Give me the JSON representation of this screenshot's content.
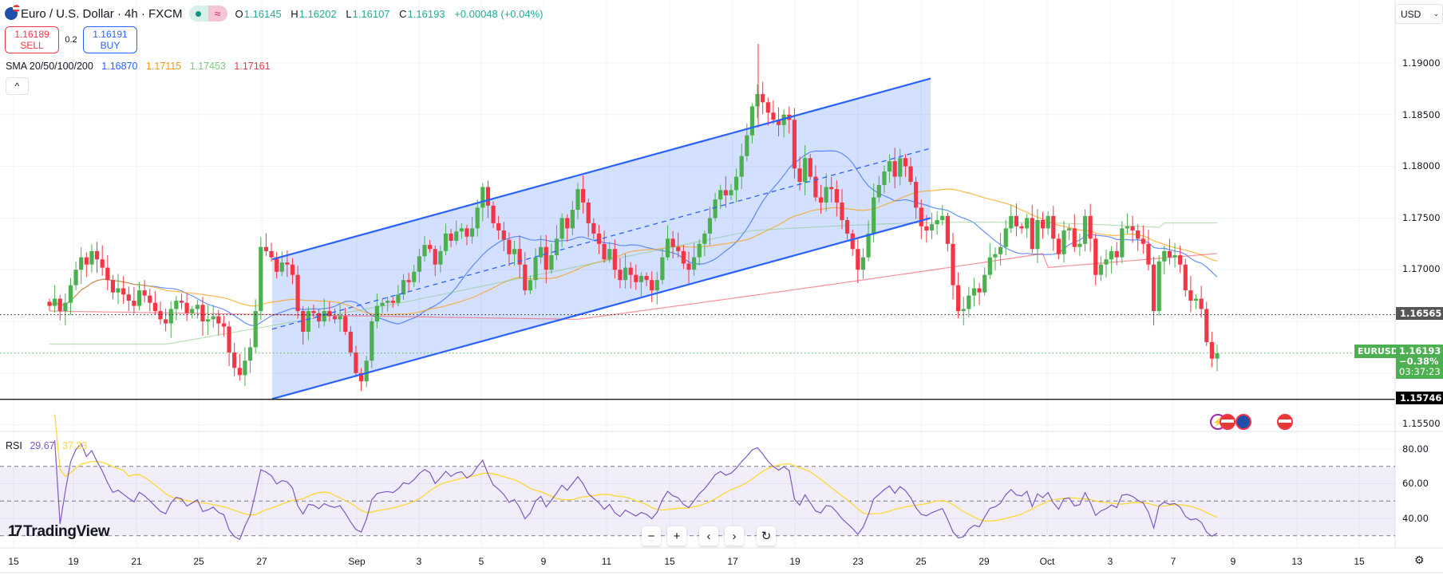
{
  "header": {
    "symbol_title": "Euro / U.S. Dollar · 4h · FXCM",
    "ohlc": {
      "o_label": "O",
      "o": "1.16145",
      "h_label": "H",
      "h": "1.16202",
      "l_label": "L",
      "l": "1.16107",
      "c_label": "C",
      "c": "1.16193",
      "change": "+0.00048 (+0.04%)"
    },
    "market_status_icon": "market-open-dot",
    "data_icon": "≈"
  },
  "trade": {
    "sell_price": "1.16189",
    "sell_label": "SELL",
    "spread": "0.2",
    "buy_price": "1.16191",
    "buy_label": "BUY"
  },
  "sma": {
    "label": "SMA 20/50/100/200",
    "values": [
      "1.16870",
      "1.17115",
      "1.17453",
      "1.17161"
    ],
    "colors": [
      "#2962ff",
      "#ff9800",
      "#81c784",
      "#f23645"
    ]
  },
  "collapse_icon": "^",
  "currency_select": "USD",
  "price_axis": {
    "ticks": [
      "1.19000",
      "1.18500",
      "1.18000",
      "1.17500",
      "1.17000",
      "1.15500"
    ],
    "tags": {
      "line_level": "1.16565",
      "current_price": "1.16193",
      "current_change": "−0.38%",
      "countdown": "03:37:23",
      "support_level": "1.15746",
      "symbol": "EURUSD"
    }
  },
  "rsi": {
    "label": "RSI",
    "value": "29.67",
    "ma_value": "37.33",
    "ticks": [
      "80.00",
      "60.00",
      "40.00"
    ]
  },
  "time_axis": [
    "15",
    "19",
    "21",
    "25",
    "27",
    "Sep",
    "3",
    "5",
    "9",
    "11",
    "15",
    "17",
    "19",
    "23",
    "25",
    "29",
    "Oct",
    "3",
    "7",
    "9",
    "13",
    "15"
  ],
  "logo": {
    "mark": "17",
    "text": "TradingView"
  },
  "controls": {
    "zoom_out": "−",
    "zoom_in": "+",
    "scroll_left": "‹",
    "scroll_right": "›",
    "reset": "↻"
  },
  "chart_data": {
    "type": "candlestick",
    "title": "Euro / U.S. Dollar · 4h · FXCM",
    "ylabel": "USD",
    "ylim": [
      1.153,
      1.195
    ],
    "x_ticks": [
      "15",
      "19",
      "21",
      "25",
      "27",
      "Sep",
      "3",
      "5",
      "9",
      "11",
      "15",
      "17",
      "19",
      "23",
      "25",
      "29",
      "Oct",
      "3",
      "7",
      "9",
      "13",
      "15"
    ],
    "closes": [
      1.1665,
      1.1672,
      1.166,
      1.1668,
      1.1685,
      1.17,
      1.1712,
      1.1705,
      1.1718,
      1.171,
      1.1702,
      1.169,
      1.1678,
      1.1682,
      1.1676,
      1.167,
      1.1665,
      1.168,
      1.1675,
      1.1668,
      1.166,
      1.1652,
      1.1648,
      1.1662,
      1.167,
      1.1668,
      1.1658,
      1.1662,
      1.1666,
      1.165,
      1.1652,
      1.1655,
      1.1648,
      1.1645,
      1.162,
      1.1605,
      1.1598,
      1.1612,
      1.1625,
      1.166,
      1.1722,
      1.1718,
      1.1712,
      1.1698,
      1.1707,
      1.1705,
      1.1695,
      1.166,
      1.164,
      1.166,
      1.1658,
      1.165,
      1.166,
      1.1655,
      1.1652,
      1.1655,
      1.164,
      1.162,
      1.16,
      1.1592,
      1.1612,
      1.165,
      1.1665,
      1.1668,
      1.167,
      1.1668,
      1.1676,
      1.169,
      1.1688,
      1.1698,
      1.1713,
      1.1724,
      1.172,
      1.1705,
      1.1718,
      1.1735,
      1.1728,
      1.1737,
      1.174,
      1.1732,
      1.174,
      1.176,
      1.178,
      1.1762,
      1.1745,
      1.1738,
      1.1729,
      1.1715,
      1.172,
      1.1705,
      1.168,
      1.169,
      1.1712,
      1.1722,
      1.17,
      1.1714,
      1.173,
      1.175,
      1.174,
      1.1758,
      1.1778,
      1.1765,
      1.1745,
      1.1735,
      1.1725,
      1.171,
      1.172,
      1.17,
      1.169,
      1.1702,
      1.1695,
      1.1688,
      1.1694,
      1.169,
      1.168,
      1.169,
      1.1712,
      1.173,
      1.1722,
      1.1718,
      1.1706,
      1.17,
      1.1712,
      1.1725,
      1.1735,
      1.175,
      1.1768,
      1.1777,
      1.1772,
      1.1777,
      1.179,
      1.181,
      1.183,
      1.1858,
      1.187,
      1.1862,
      1.1852,
      1.1845,
      1.184,
      1.185,
      1.1845,
      1.1798,
      1.1785,
      1.1808,
      1.179,
      1.177,
      1.1765,
      1.178,
      1.1778,
      1.1765,
      1.1748,
      1.1735,
      1.172,
      1.17,
      1.1712,
      1.1735,
      1.177,
      1.1782,
      1.1795,
      1.1805,
      1.179,
      1.1808,
      1.18,
      1.1785,
      1.176,
      1.1742,
      1.1738,
      1.1744,
      1.1748,
      1.1752,
      1.1725,
      1.1685,
      1.166,
      1.1662,
      1.1675,
      1.1682,
      1.1678,
      1.1695,
      1.1712,
      1.1715,
      1.1722,
      1.174,
      1.1752,
      1.1742,
      1.174,
      1.175,
      1.172,
      1.1748,
      1.174,
      1.1752,
      1.173,
      1.1715,
      1.1738,
      1.174,
      1.1722,
      1.1725,
      1.1752,
      1.173,
      1.1695,
      1.1705,
      1.171,
      1.1718,
      1.1712,
      1.174,
      1.1742,
      1.1738,
      1.173,
      1.1725,
      1.1705,
      1.166,
      1.1708,
      1.1718,
      1.1712,
      1.1714,
      1.1705,
      1.168,
      1.167,
      1.1672,
      1.1662,
      1.163,
      1.1614,
      1.1619
    ],
    "series": [
      {
        "name": "SMA 20",
        "color": "#2962ff",
        "last": 1.1687
      },
      {
        "name": "SMA 50",
        "color": "#ff9800",
        "last": 1.17115
      },
      {
        "name": "SMA 100",
        "color": "#81c784",
        "last": 1.17453
      },
      {
        "name": "SMA 200",
        "color": "#f23645",
        "last": 1.17161
      }
    ],
    "horizontal_lines": [
      {
        "price": 1.16565,
        "style": "dotted",
        "color": "#131722"
      },
      {
        "price": 1.16193,
        "style": "dotted",
        "color": "#4caf50"
      },
      {
        "price": 1.15746,
        "style": "solid",
        "color": "#000000"
      }
    ],
    "channel": {
      "upper": [
        [
          "Aug 28",
          1.171
        ],
        [
          "Sep 25",
          1.1885
        ]
      ],
      "lower": [
        [
          "Aug 28",
          1.1575
        ],
        [
          "Sep 25",
          1.175
        ]
      ],
      "color": "#2962ff"
    },
    "rsi": {
      "length": 14,
      "last": 29.67,
      "ma_last": 37.33,
      "bands": [
        70,
        50,
        30
      ],
      "ylim": [
        25,
        85
      ]
    }
  }
}
